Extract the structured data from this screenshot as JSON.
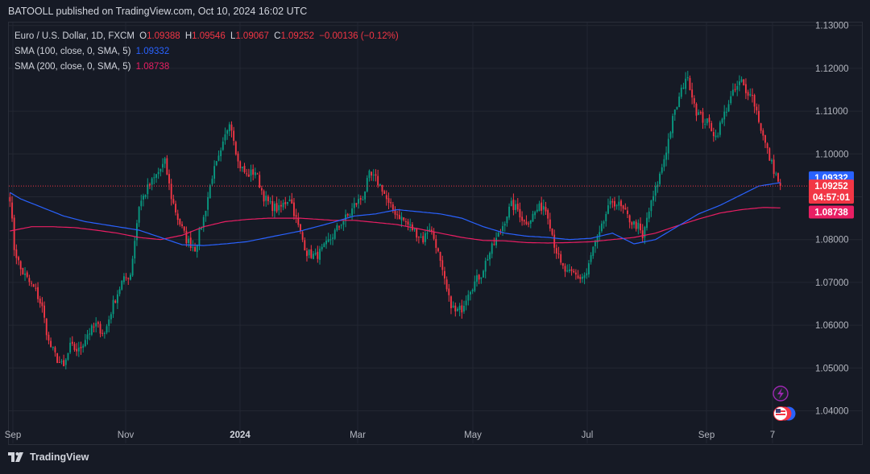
{
  "header": {
    "publisher_line": "BATOOLL published on TradingView.com, Oct 10, 2024 16:02 UTC"
  },
  "legend": {
    "symbol": "Euro / U.S. Dollar, 1D, FXCM",
    "o_label": "O",
    "o": "1.09388",
    "h_label": "H",
    "h": "1.09546",
    "l_label": "L",
    "l": "1.09067",
    "c_label": "C",
    "c": "1.09252",
    "change": "−0.00136 (−0.12%)",
    "sma100_label": "SMA (100, close, 0, SMA, 5)",
    "sma100_value": "1.09332",
    "sma200_label": "SMA (200, close, 0, SMA, 5)",
    "sma200_value": "1.08738"
  },
  "price_badges": {
    "sma100": "1.09332",
    "last": "1.09252",
    "countdown": "04:57:01",
    "sma200": "1.08738"
  },
  "footer": {
    "brand": "TradingView"
  },
  "colors": {
    "up": "#089981",
    "down": "#f23645",
    "sma100": "#2962ff",
    "sma200": "#e91e63",
    "grid": "#232732",
    "background": "#161a25"
  },
  "icons": [
    "lightning-icon",
    "us-flag-icon"
  ],
  "chart_data": {
    "type": "candlestick",
    "title": "Euro / U.S. Dollar, 1D, FXCM",
    "ylim": [
      1.0355,
      1.133
    ],
    "y_ticks": [
      "1.04000",
      "1.05000",
      "1.06000",
      "1.07000",
      "1.08000",
      "1.09000",
      "1.10000",
      "1.11000",
      "1.12000",
      "1.13000"
    ],
    "x_ticks": [
      "Sep",
      "Nov",
      "2024",
      "Mar",
      "May",
      "Jul",
      "Sep",
      "7"
    ],
    "grid": true,
    "last_close": 1.09252,
    "close_path": [
      [
        0,
        1.09
      ],
      [
        2,
        1.078
      ],
      [
        5,
        1.073
      ],
      [
        9,
        1.07
      ],
      [
        12,
        1.068
      ],
      [
        15,
        1.064
      ],
      [
        18,
        1.056
      ],
      [
        22,
        1.052
      ],
      [
        25,
        1.05
      ],
      [
        28,
        1.055
      ],
      [
        32,
        1.054
      ],
      [
        36,
        1.058
      ],
      [
        40,
        1.06
      ],
      [
        44,
        1.058
      ],
      [
        48,
        1.065
      ],
      [
        52,
        1.07
      ],
      [
        56,
        1.072
      ],
      [
        58,
        1.08
      ],
      [
        60,
        1.088
      ],
      [
        64,
        1.092
      ],
      [
        68,
        1.095
      ],
      [
        72,
        1.098
      ],
      [
        75,
        1.09
      ],
      [
        78,
        1.085
      ],
      [
        82,
        1.08
      ],
      [
        86,
        1.078
      ],
      [
        90,
        1.085
      ],
      [
        94,
        1.095
      ],
      [
        98,
        1.1
      ],
      [
        102,
        1.108
      ],
      [
        104,
        1.104
      ],
      [
        106,
        1.098
      ],
      [
        110,
        1.095
      ],
      [
        114,
        1.096
      ],
      [
        118,
        1.09
      ],
      [
        121,
        1.088
      ],
      [
        125,
        1.087
      ],
      [
        130,
        1.09
      ],
      [
        134,
        1.083
      ],
      [
        138,
        1.077
      ],
      [
        142,
        1.076
      ],
      [
        146,
        1.078
      ],
      [
        150,
        1.081
      ],
      [
        154,
        1.084
      ],
      [
        158,
        1.086
      ],
      [
        160,
        1.088
      ],
      [
        164,
        1.09
      ],
      [
        167,
        1.095
      ],
      [
        170,
        1.094
      ],
      [
        173,
        1.092
      ],
      [
        176,
        1.088
      ],
      [
        180,
        1.086
      ],
      [
        184,
        1.084
      ],
      [
        188,
        1.082
      ],
      [
        192,
        1.08
      ],
      [
        195,
        1.083
      ],
      [
        198,
        1.079
      ],
      [
        201,
        1.072
      ],
      [
        204,
        1.066
      ],
      [
        207,
        1.063
      ],
      [
        210,
        1.064
      ],
      [
        213,
        1.068
      ],
      [
        216,
        1.07
      ],
      [
        219,
        1.072
      ],
      [
        222,
        1.076
      ],
      [
        225,
        1.079
      ],
      [
        228,
        1.082
      ],
      [
        231,
        1.086
      ],
      [
        233,
        1.088
      ],
      [
        236,
        1.087
      ],
      [
        239,
        1.084
      ],
      [
        242,
        1.085
      ],
      [
        245,
        1.087
      ],
      [
        248,
        1.088
      ],
      [
        250,
        1.086
      ],
      [
        253,
        1.079
      ],
      [
        256,
        1.074
      ],
      [
        259,
        1.072
      ],
      [
        262,
        1.072
      ],
      [
        265,
        1.071
      ],
      [
        268,
        1.072
      ],
      [
        271,
        1.078
      ],
      [
        274,
        1.081
      ],
      [
        277,
        1.086
      ],
      [
        280,
        1.089
      ],
      [
        283,
        1.088
      ],
      [
        286,
        1.086
      ],
      [
        289,
        1.084
      ],
      [
        292,
        1.083
      ],
      [
        294,
        1.08
      ],
      [
        296,
        1.085
      ],
      [
        299,
        1.09
      ],
      [
        302,
        1.095
      ],
      [
        305,
        1.101
      ],
      [
        308,
        1.108
      ],
      [
        311,
        1.113
      ],
      [
        314,
        1.118
      ],
      [
        316,
        1.116
      ],
      [
        319,
        1.11
      ],
      [
        322,
        1.108
      ],
      [
        325,
        1.107
      ],
      [
        328,
        1.104
      ],
      [
        331,
        1.108
      ],
      [
        334,
        1.112
      ],
      [
        337,
        1.115
      ],
      [
        340,
        1.117
      ],
      [
        342,
        1.114
      ],
      [
        344,
        1.115
      ],
      [
        347,
        1.11
      ],
      [
        350,
        1.104
      ],
      [
        353,
        1.099
      ],
      [
        356,
        1.095
      ],
      [
        358,
        1.0925
      ]
    ],
    "sma100_path": [
      [
        0,
        1.091
      ],
      [
        5,
        1.0895
      ],
      [
        15,
        1.0875
      ],
      [
        25,
        1.0855
      ],
      [
        35,
        1.0842
      ],
      [
        50,
        1.083
      ],
      [
        60,
        1.0822
      ],
      [
        70,
        1.0805
      ],
      [
        80,
        1.0788
      ],
      [
        90,
        1.0786
      ],
      [
        100,
        1.079
      ],
      [
        110,
        1.0795
      ],
      [
        120,
        1.0805
      ],
      [
        135,
        1.082
      ],
      [
        150,
        1.084
      ],
      [
        160,
        1.0855
      ],
      [
        170,
        1.086
      ],
      [
        180,
        1.087
      ],
      [
        190,
        1.0865
      ],
      [
        200,
        1.086
      ],
      [
        210,
        1.085
      ],
      [
        220,
        1.083
      ],
      [
        230,
        1.0815
      ],
      [
        240,
        1.0808
      ],
      [
        250,
        1.0805
      ],
      [
        260,
        1.08
      ],
      [
        270,
        1.0803
      ],
      [
        280,
        1.0815
      ],
      [
        290,
        1.079
      ],
      [
        300,
        1.08
      ],
      [
        310,
        1.083
      ],
      [
        320,
        1.086
      ],
      [
        330,
        1.088
      ],
      [
        340,
        1.0905
      ],
      [
        348,
        1.0925
      ],
      [
        358,
        1.0933
      ]
    ],
    "sma200_path": [
      [
        0,
        1.082
      ],
      [
        10,
        1.083
      ],
      [
        20,
        1.083
      ],
      [
        30,
        1.0828
      ],
      [
        40,
        1.0822
      ],
      [
        50,
        1.0815
      ],
      [
        60,
        1.0805
      ],
      [
        70,
        1.08
      ],
      [
        80,
        1.081
      ],
      [
        90,
        1.083
      ],
      [
        100,
        1.0842
      ],
      [
        110,
        1.0847
      ],
      [
        120,
        1.085
      ],
      [
        135,
        1.085
      ],
      [
        150,
        1.0845
      ],
      [
        160,
        1.0845
      ],
      [
        170,
        1.084
      ],
      [
        180,
        1.0835
      ],
      [
        190,
        1.0825
      ],
      [
        200,
        1.0815
      ],
      [
        210,
        1.0805
      ],
      [
        220,
        1.0798
      ],
      [
        230,
        1.0797
      ],
      [
        240,
        1.0793
      ],
      [
        250,
        1.0792
      ],
      [
        260,
        1.0793
      ],
      [
        270,
        1.0795
      ],
      [
        280,
        1.08
      ],
      [
        290,
        1.0805
      ],
      [
        300,
        1.0815
      ],
      [
        310,
        1.0832
      ],
      [
        320,
        1.0848
      ],
      [
        330,
        1.0862
      ],
      [
        340,
        1.087
      ],
      [
        350,
        1.0875
      ],
      [
        358,
        1.0874
      ]
    ]
  }
}
